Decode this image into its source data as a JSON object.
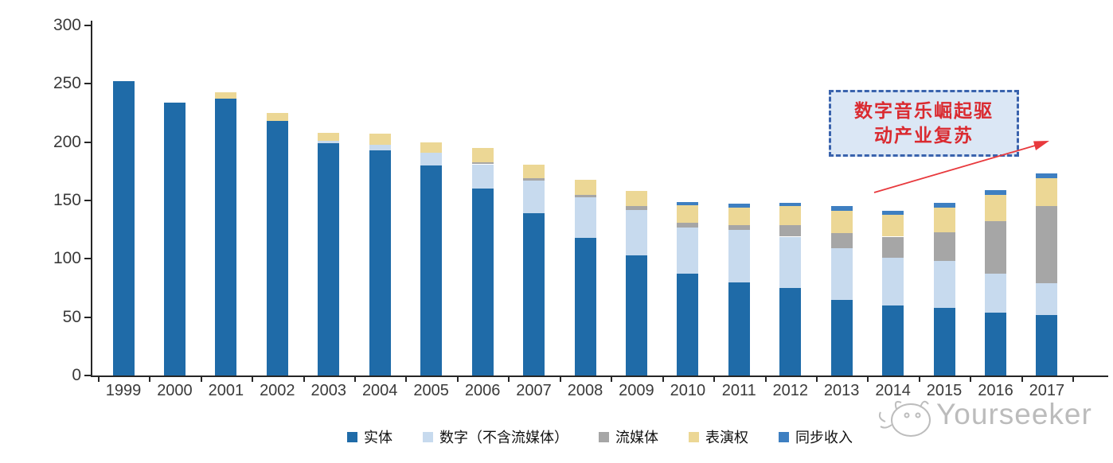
{
  "chart_data": {
    "type": "bar",
    "stacked": true,
    "title": "",
    "xlabel": "",
    "ylabel": "",
    "categories": [
      "1999",
      "2000",
      "2001",
      "2002",
      "2003",
      "2004",
      "2005",
      "2006",
      "2007",
      "2008",
      "2009",
      "2010",
      "2011",
      "2012",
      "2013",
      "2014",
      "2015",
      "2016",
      "2017"
    ],
    "series": [
      {
        "name": "实体",
        "color": "#1f6ba8",
        "values": [
          252,
          234,
          237,
          218,
          199,
          193,
          180,
          160,
          139,
          118,
          103,
          87,
          80,
          75,
          65,
          60,
          58,
          54,
          52
        ]
      },
      {
        "name": "数字（不含流媒体）",
        "color": "#c7daee",
        "values": [
          0,
          0,
          0,
          0,
          2,
          5,
          11,
          21,
          28,
          35,
          39,
          40,
          45,
          44,
          44,
          41,
          40,
          33,
          27
        ]
      },
      {
        "name": "流媒体",
        "color": "#a6a6a6",
        "values": [
          0,
          0,
          0,
          0,
          0,
          0,
          0,
          2,
          2,
          2,
          3,
          4,
          4,
          10,
          13,
          18,
          25,
          45,
          66
        ]
      },
      {
        "name": "表演权",
        "color": "#ecd795",
        "values": [
          0,
          0,
          6,
          7,
          7,
          9,
          9,
          12,
          12,
          13,
          13,
          15,
          15,
          16,
          19,
          19,
          21,
          23,
          24
        ]
      },
      {
        "name": "同步收入",
        "color": "#3e7fc1",
        "values": [
          0,
          0,
          0,
          0,
          0,
          0,
          0,
          0,
          0,
          0,
          0,
          3,
          3,
          3,
          4,
          3,
          4,
          4,
          4
        ]
      }
    ],
    "ylim": [
      0,
      300
    ],
    "yticks": [
      0,
      50,
      100,
      150,
      200,
      250,
      300
    ],
    "grid": false,
    "legend_position": "bottom"
  },
  "annotation": {
    "line1": "数字音乐崛起驱",
    "line2": "动产业复苏",
    "text_color": "#da2a30",
    "box_fill": "#dbe7f5",
    "box_border": "#3a63ad",
    "arrow_color": "#e8393d"
  },
  "watermark": {
    "text": "Yourseeker",
    "icon": "yourseeker-cat-logo-icon",
    "color": "#a5a5a5"
  }
}
